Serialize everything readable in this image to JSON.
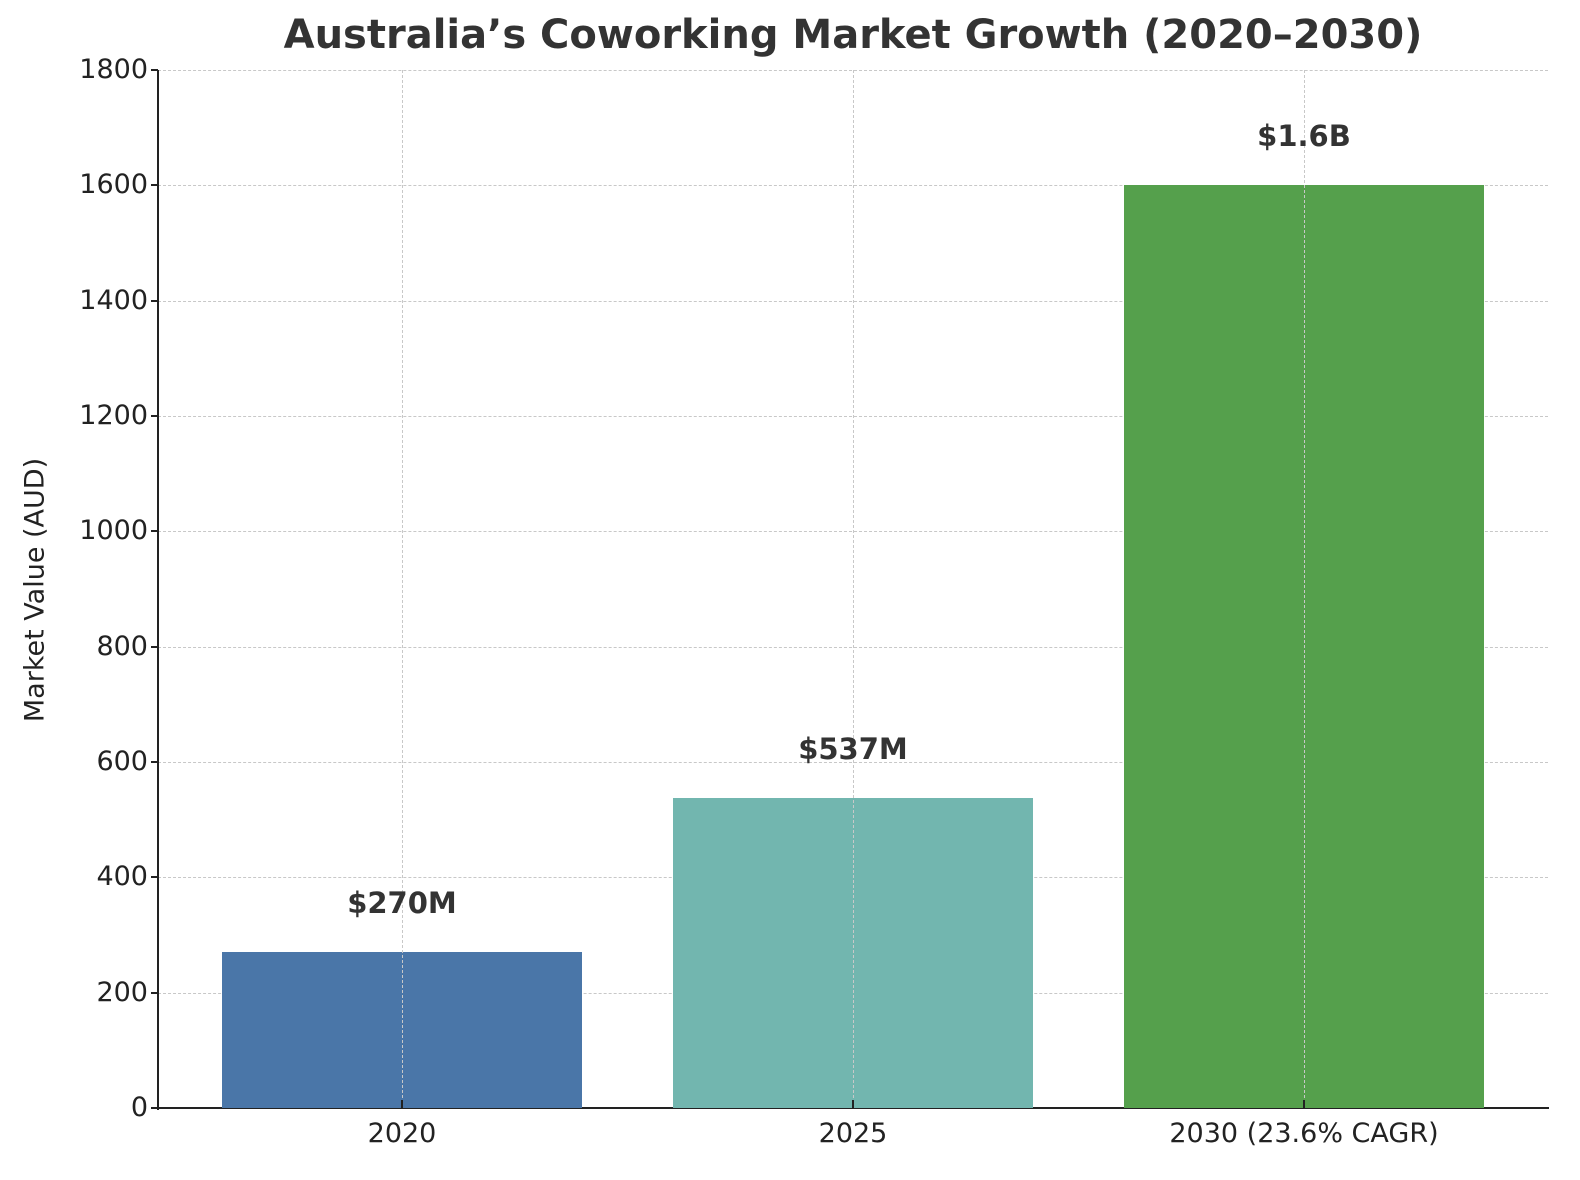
{
  "chart_data": {
    "type": "bar",
    "title": "Australia’s Coworking Market Growth (2020–2030)",
    "xlabel": "",
    "ylabel": "Market Value (AUD)",
    "categories": [
      "2020",
      "2025",
      "2030 (23.6% CAGR)"
    ],
    "values": [
      270,
      537,
      1600
    ],
    "bar_labels": [
      "$270M",
      "$537M",
      "$1.6B"
    ],
    "colors": [
      "#4a76a8",
      "#72b6af",
      "#55a04c"
    ],
    "ylim": [
      0,
      1800
    ],
    "yticks": [
      0,
      200,
      400,
      600,
      800,
      1000,
      1200,
      1400,
      1600,
      1800
    ],
    "grid": true,
    "legend": null
  }
}
